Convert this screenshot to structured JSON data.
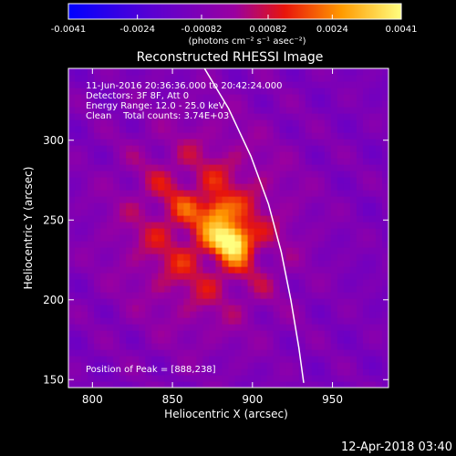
{
  "chart_data": {
    "type": "heatmap",
    "title": "Reconstructed RHESSI Image",
    "xlabel": "Heliocentric X (arcsec)",
    "ylabel": "Heliocentric Y (arcsec)",
    "xlim": [
      785,
      985
    ],
    "ylim": [
      145,
      345
    ],
    "x_ticks": [
      "800",
      "850",
      "900",
      "950"
    ],
    "x_tick_values": [
      800,
      850,
      900,
      950
    ],
    "y_ticks": [
      "150",
      "200",
      "250",
      "300"
    ],
    "y_tick_values": [
      150,
      200,
      250,
      300
    ],
    "colorbar": {
      "ticks": [
        "-0.0041",
        "-0.0024",
        "-0.00082",
        "0.00082",
        "0.0024",
        "0.0041"
      ],
      "tick_values": [
        -0.0041,
        -0.0024,
        -0.00082,
        0.00082,
        0.0024,
        0.0041
      ],
      "range": [
        -0.0041,
        0.0041
      ],
      "units": "(photons cm⁻² s⁻¹ asec⁻²)"
    },
    "peak": [
      888,
      238
    ],
    "secondary_peak": [
      878,
      256
    ],
    "limb_points": [
      [
        870,
        345
      ],
      [
        885,
        320
      ],
      [
        899,
        290
      ],
      [
        910,
        260
      ],
      [
        918,
        230
      ],
      [
        924,
        200
      ],
      [
        929,
        170
      ],
      [
        932,
        148
      ]
    ]
  },
  "annotations": {
    "time_range": "11-Jun-2016 20:36:36.000 to 20:42:24.000",
    "detectors": "Detectors: 3F 8F, Att 0",
    "energy": "Energy Range: 12.0 - 25.0 keV",
    "clean": "Clean    Total counts: 3.74E+03",
    "peak_label": "Position of Peak = [888,238]"
  },
  "footer": {
    "timestamp": "12-Apr-2018 03:40"
  },
  "colors": {
    "colormap": [
      "#0000ff",
      "#5a00d2",
      "#9a00a0",
      "#e8150b",
      "#ff9a00",
      "#ffff80"
    ],
    "background": "#000000",
    "text": "#ffffff"
  }
}
